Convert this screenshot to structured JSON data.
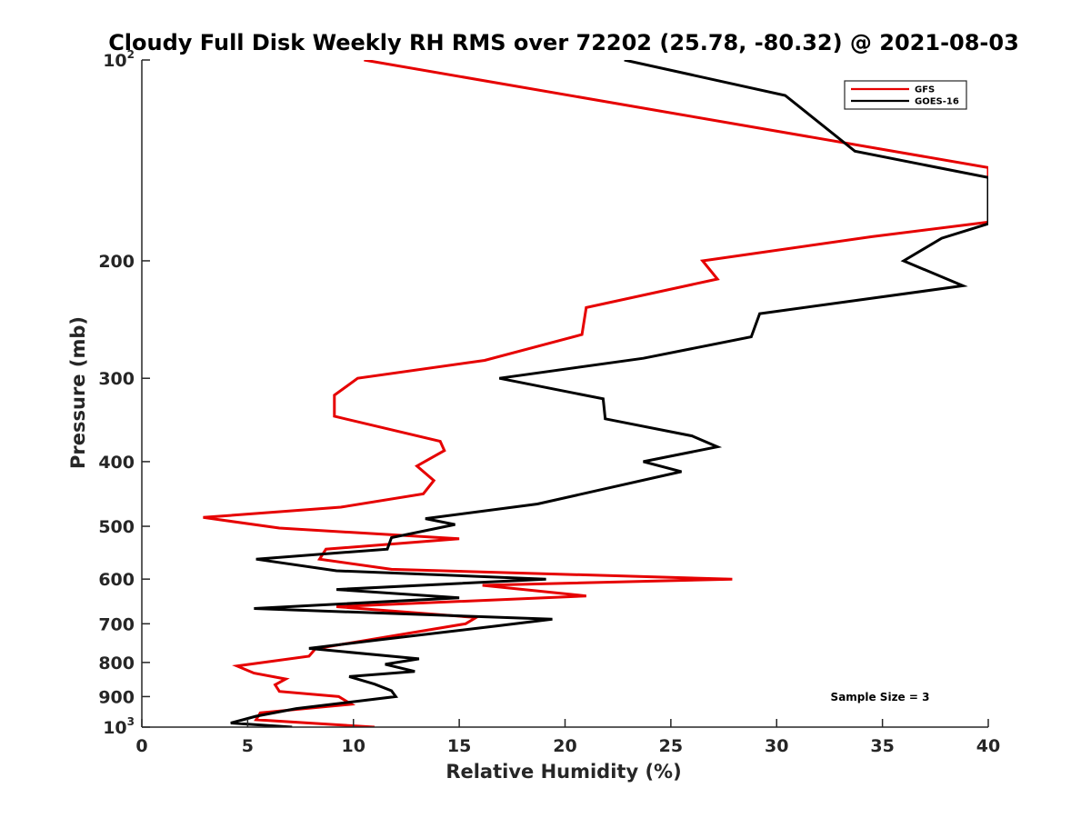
{
  "chart_data": {
    "type": "line",
    "title": "Cloudy Full Disk Weekly RH RMS over 72202 (25.78, -80.32) @ 2021-08-03",
    "xlabel": "Relative Humidity (%)",
    "ylabel": "Pressure (mb)",
    "xlim": [
      0,
      40
    ],
    "ylim": [
      100,
      1000
    ],
    "yscale": "log",
    "yreversed": true,
    "grid": false,
    "legend_position": "top-right",
    "xticks": [
      "0",
      "5",
      "10",
      "15",
      "20",
      "25",
      "30",
      "35",
      "40"
    ],
    "yticks": [
      {
        "value": 100,
        "base": "10",
        "exp": "2"
      },
      {
        "value": 200,
        "base": "200",
        "exp": ""
      },
      {
        "value": 300,
        "base": "300",
        "exp": ""
      },
      {
        "value": 400,
        "base": "400",
        "exp": ""
      },
      {
        "value": 500,
        "base": "500",
        "exp": ""
      },
      {
        "value": 600,
        "base": "600",
        "exp": ""
      },
      {
        "value": 700,
        "base": "700",
        "exp": ""
      },
      {
        "value": 800,
        "base": "800",
        "exp": ""
      },
      {
        "value": 900,
        "base": "900",
        "exp": ""
      },
      {
        "value": 1000,
        "base": "10",
        "exp": "3"
      }
    ],
    "annotation": "Sample Size = 3",
    "series": [
      {
        "name": "GFS",
        "color": "#e60000",
        "points": [
          [
            10.5,
            100
          ],
          [
            40,
            145
          ],
          [
            40,
            175
          ],
          [
            34.5,
            184
          ],
          [
            26.5,
            200
          ],
          [
            27.2,
            213
          ],
          [
            21.0,
            235
          ],
          [
            20.8,
            258
          ],
          [
            16.2,
            282
          ],
          [
            10.2,
            300
          ],
          [
            9.1,
            318
          ],
          [
            9.1,
            342
          ],
          [
            14.1,
            373
          ],
          [
            14.3,
            385
          ],
          [
            13.0,
            406
          ],
          [
            13.8,
            427
          ],
          [
            13.3,
            447
          ],
          [
            9.4,
            468
          ],
          [
            2.9,
            485
          ],
          [
            6.5,
            503
          ],
          [
            15.0,
            522
          ],
          [
            8.7,
            541
          ],
          [
            8.4,
            560
          ],
          [
            11.8,
            580
          ],
          [
            27.9,
            600
          ],
          [
            16.1,
            613
          ],
          [
            21.0,
            636
          ],
          [
            9.2,
            660
          ],
          [
            15.8,
            685
          ],
          [
            15.3,
            700
          ],
          [
            8.2,
            763
          ],
          [
            7.9,
            783
          ],
          [
            4.5,
            810
          ],
          [
            5.3,
            830
          ],
          [
            6.8,
            847
          ],
          [
            6.3,
            864
          ],
          [
            6.5,
            884
          ],
          [
            9.3,
            900
          ],
          [
            9.9,
            924
          ],
          [
            5.6,
            952
          ],
          [
            5.4,
            975
          ],
          [
            11.0,
            1000
          ]
        ]
      },
      {
        "name": "GOES-16",
        "color": "#000000",
        "points": [
          [
            22.8,
            100
          ],
          [
            30.4,
            113
          ],
          [
            33.7,
            137
          ],
          [
            40,
            150
          ],
          [
            40,
            176
          ],
          [
            37.8,
            185
          ],
          [
            36.0,
            200
          ],
          [
            38.8,
            218
          ],
          [
            29.2,
            240
          ],
          [
            28.8,
            260
          ],
          [
            23.7,
            280
          ],
          [
            16.9,
            300
          ],
          [
            21.8,
            322
          ],
          [
            21.9,
            345
          ],
          [
            26.0,
            366
          ],
          [
            27.2,
            380
          ],
          [
            23.7,
            400
          ],
          [
            25.5,
            414
          ],
          [
            18.7,
            463
          ],
          [
            13.4,
            487
          ],
          [
            14.8,
            497
          ],
          [
            11.8,
            520
          ],
          [
            11.6,
            541
          ],
          [
            5.4,
            560
          ],
          [
            9.2,
            583
          ],
          [
            19.1,
            600
          ],
          [
            9.2,
            622
          ],
          [
            15.0,
            640
          ],
          [
            5.3,
            664
          ],
          [
            19.4,
            689
          ],
          [
            16.8,
            705
          ],
          [
            11.2,
            740
          ],
          [
            7.9,
            762
          ],
          [
            13.1,
            790
          ],
          [
            11.5,
            805
          ],
          [
            12.9,
            825
          ],
          [
            9.8,
            840
          ],
          [
            11.0,
            862
          ],
          [
            11.8,
            882
          ],
          [
            12.0,
            900
          ],
          [
            7.3,
            938
          ],
          [
            5.4,
            963
          ],
          [
            4.2,
            986
          ],
          [
            7.1,
            1000
          ]
        ]
      }
    ]
  }
}
